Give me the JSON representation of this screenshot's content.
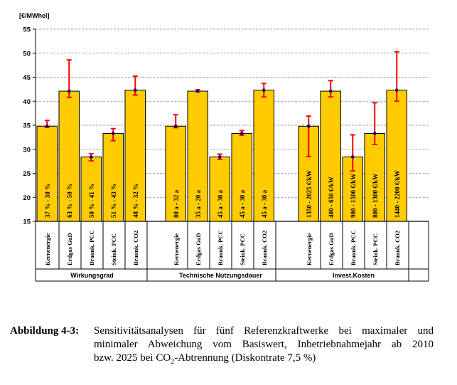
{
  "chart_data": {
    "type": "bar",
    "ylabel": "[€/MWhel]",
    "ylim": [
      15,
      55
    ],
    "yticks": [
      15,
      20,
      25,
      30,
      35,
      40,
      45,
      50,
      55
    ],
    "grid": true,
    "bar_color": "#FFCC00",
    "error_color": "#FF0000",
    "marker_color": "#000080",
    "groups": [
      {
        "name": "Wirkungsgrad",
        "bars": [
          {
            "category": "Kernenergie",
            "label": "37 % - 30 %",
            "value": 34.8,
            "low": 34.6,
            "high": 36.0
          },
          {
            "category": "Erdgas GuD",
            "label": "63 % - 50 %",
            "value": 42.1,
            "low": 40.8,
            "high": 48.6
          },
          {
            "category": "Braunk. PCC",
            "label": "50 % - 41 %",
            "value": 28.4,
            "low": 27.6,
            "high": 29.1
          },
          {
            "category": "Steink. PCC",
            "label": "51 % - 43 %",
            "value": 33.3,
            "low": 31.8,
            "high": 34.3
          },
          {
            "category": "Braunk. CO2",
            "label": "48 % - 32 %",
            "value": 42.3,
            "low": 41.3,
            "high": 45.2
          }
        ]
      },
      {
        "name": "Technische Nutzungsdauer",
        "bars": [
          {
            "category": "Kernenergie",
            "label": "80 a - 32 a",
            "value": 34.8,
            "low": 34.5,
            "high": 37.2
          },
          {
            "category": "Erdgas GuD",
            "label": "35 a - 20 a",
            "value": 42.1,
            "low": 42.0,
            "high": 42.4
          },
          {
            "category": "Braunk. PCC",
            "label": "45 a - 30 a",
            "value": 28.4,
            "low": 27.9,
            "high": 29.0
          },
          {
            "category": "Steink. PCC",
            "label": "45 a - 30 a",
            "value": 33.3,
            "low": 32.9,
            "high": 33.9
          },
          {
            "category": "Braunk. CO2",
            "label": "45 a - 30 a",
            "value": 42.3,
            "low": 40.9,
            "high": 43.7
          }
        ]
      },
      {
        "name": "Invest.Kosten",
        "bars": [
          {
            "category": "Kernenergie",
            "label": "1350 - 2025 €/kW",
            "value": 34.8,
            "low": 28.5,
            "high": 36.9
          },
          {
            "category": "Erdgas GuD",
            "label": "400 - 650 €/kW",
            "value": 42.1,
            "low": 40.9,
            "high": 44.3
          },
          {
            "category": "Braunk. PCC",
            "label": "900 - 1500 €/kW",
            "value": 28.4,
            "low": 25.5,
            "high": 33.0
          },
          {
            "category": "Steink. PCC",
            "label": "800 - 1300 €/kW",
            "value": 33.3,
            "low": 31.0,
            "high": 39.7
          },
          {
            "category": "Braunk. CO2",
            "label": "1440 - 2200 €/kW",
            "value": 42.3,
            "low": 40.0,
            "high": 50.3
          }
        ]
      }
    ]
  },
  "caption": {
    "label": "Abbildung 4-3",
    "colon": ":",
    "line1": "Sensitivitätsanalysen für fünf Referenzkraftwerke bei maximaler und",
    "line2": "minimaler Abweichung vom Basiswert, Inbetriebnahmejahr ab 2010",
    "line3_before": "bzw. 2025 bei CO",
    "line3_sub": "2",
    "line3_after": "-Abtrennung (Diskontrate 7,5 %)"
  }
}
